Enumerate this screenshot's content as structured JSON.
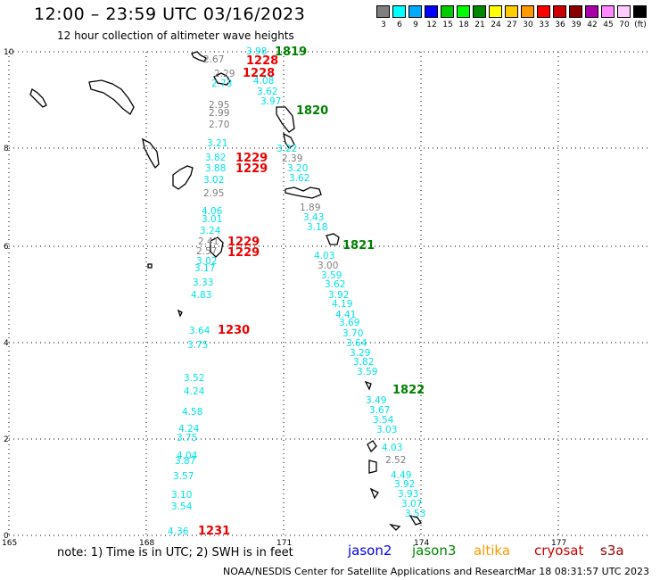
{
  "header": {
    "title": "12:00 – 23:59 UTC 03/16/2023",
    "subtitle": "12 hour collection of altimeter wave heights"
  },
  "colors": {
    "gray": "#7f7f7f",
    "cyan": "#00e5e5",
    "red": "#ee0000",
    "green": "#008000",
    "jason2": "#0000ee",
    "jason3": "#008800",
    "altika": "#ff9900",
    "cryosat": "#cc0000",
    "s3a": "#990000"
  },
  "color_scale": {
    "labels": [
      "3",
      "6",
      "9",
      "12",
      "15",
      "18",
      "21",
      "24",
      "27",
      "30",
      "33",
      "36",
      "39",
      "42",
      "45",
      "70",
      "(ft)"
    ],
    "colors": [
      "#7f7f7f",
      "#00ffff",
      "#00aaff",
      "#0000ff",
      "#00cc00",
      "#00ff00",
      "#008800",
      "#ffff00",
      "#ffcc00",
      "#ff9900",
      "#ff0000",
      "#cc0000",
      "#880000",
      "#aa00aa",
      "#ff88ff",
      "#ffccff",
      "#000000"
    ]
  },
  "axes": {
    "x_ticks": [
      "165",
      "168",
      "171",
      "174",
      "177"
    ],
    "y_ticks": [
      "10",
      "8",
      "6",
      "4",
      "2",
      "0"
    ]
  },
  "tracks": {
    "west": [
      {
        "v": "2.67",
        "c": "gray"
      },
      {
        "v": "2.29",
        "c": "gray"
      },
      {
        "v": "2.73",
        "c": "cyan"
      },
      {
        "v": "2.95",
        "c": "gray"
      },
      {
        "v": "2.99",
        "c": "gray"
      },
      {
        "v": "2.70",
        "c": "gray"
      },
      {
        "v": "3.21",
        "c": "cyan"
      },
      {
        "v": "3.82",
        "c": "cyan"
      },
      {
        "v": "3.88",
        "c": "cyan"
      },
      {
        "v": "3.02",
        "c": "cyan"
      },
      {
        "v": "2.95",
        "c": "gray"
      },
      {
        "v": "4.06",
        "c": "cyan"
      },
      {
        "v": "3.01",
        "c": "cyan"
      },
      {
        "v": "3.24",
        "c": "cyan"
      },
      {
        "v": "2.41",
        "c": "gray"
      },
      {
        "v": "2.57",
        "c": "gray"
      },
      {
        "v": "3.02",
        "c": "cyan"
      },
      {
        "v": "3.17",
        "c": "cyan"
      },
      {
        "v": "3.33",
        "c": "cyan"
      },
      {
        "v": "4.83",
        "c": "cyan"
      },
      {
        "v": "3.64",
        "c": "cyan"
      },
      {
        "v": "3.75",
        "c": "cyan"
      },
      {
        "v": "3.52",
        "c": "cyan"
      },
      {
        "v": "4.24",
        "c": "cyan"
      },
      {
        "v": "4.58",
        "c": "cyan"
      },
      {
        "v": "4.24",
        "c": "cyan"
      },
      {
        "v": "3.75",
        "c": "cyan"
      },
      {
        "v": "4.04",
        "c": "cyan"
      },
      {
        "v": "3.87",
        "c": "cyan"
      },
      {
        "v": "3.57",
        "c": "cyan"
      },
      {
        "v": "3.10",
        "c": "cyan"
      },
      {
        "v": "3.54",
        "c": "cyan"
      },
      {
        "v": "4.36",
        "c": "cyan"
      }
    ],
    "east": [
      {
        "v": "3.98",
        "c": "cyan"
      },
      {
        "v": "4.08",
        "c": "cyan"
      },
      {
        "v": "3.62",
        "c": "cyan"
      },
      {
        "v": "3.97",
        "c": "cyan"
      },
      {
        "v": "3.22",
        "c": "cyan"
      },
      {
        "v": "2.39",
        "c": "gray"
      },
      {
        "v": "3.20",
        "c": "cyan"
      },
      {
        "v": "3.62",
        "c": "cyan"
      },
      {
        "v": "1.89",
        "c": "gray"
      },
      {
        "v": "3.43",
        "c": "cyan"
      },
      {
        "v": "3.18",
        "c": "cyan"
      },
      {
        "v": "4.03",
        "c": "cyan"
      },
      {
        "v": "3.00",
        "c": "gray"
      },
      {
        "v": "3.59",
        "c": "cyan"
      },
      {
        "v": "3.62",
        "c": "cyan"
      },
      {
        "v": "3.92",
        "c": "cyan"
      },
      {
        "v": "4.19",
        "c": "cyan"
      },
      {
        "v": "4.41",
        "c": "cyan"
      },
      {
        "v": "3.69",
        "c": "cyan"
      },
      {
        "v": "3.70",
        "c": "cyan"
      },
      {
        "v": "3.64",
        "c": "cyan"
      },
      {
        "v": "3.29",
        "c": "cyan"
      },
      {
        "v": "3.82",
        "c": "cyan"
      },
      {
        "v": "3.59",
        "c": "cyan"
      },
      {
        "v": "3.49",
        "c": "cyan"
      },
      {
        "v": "3.67",
        "c": "cyan"
      },
      {
        "v": "3.54",
        "c": "cyan"
      },
      {
        "v": "3.03",
        "c": "cyan"
      },
      {
        "v": "4.03",
        "c": "cyan"
      },
      {
        "v": "2.52",
        "c": "gray"
      },
      {
        "v": "4.49",
        "c": "cyan"
      },
      {
        "v": "3.92",
        "c": "cyan"
      },
      {
        "v": "3.93",
        "c": "cyan"
      },
      {
        "v": "3.07",
        "c": "cyan"
      },
      {
        "v": "3.53",
        "c": "cyan"
      }
    ]
  },
  "time_labels": {
    "west": [
      "1228",
      "1228",
      "1229",
      "1229",
      "1229",
      "1229",
      "1230",
      "1231"
    ],
    "east": [
      "1819",
      "1820",
      "1821",
      "1822"
    ]
  },
  "footer": {
    "note": "note:  1) Time is in UTC;  2) SWH is in feet",
    "satellites": [
      "jason2",
      "jason3",
      "altika",
      "cryosat",
      "s3a"
    ],
    "credit_left": "NOAA/NESDIS Center for Satellite Applications and Research",
    "credit_right": "Mar 18 08:31:57 UTC 2023"
  }
}
